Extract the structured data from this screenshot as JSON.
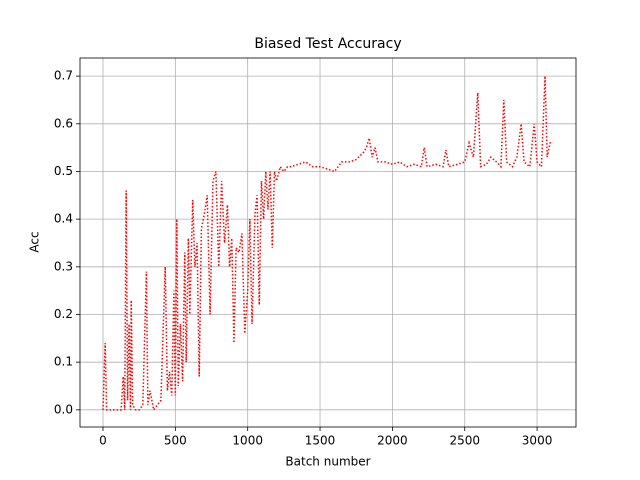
{
  "chart_data": {
    "type": "line",
    "title": "Biased Test Accuracy",
    "x_label": "Batch number",
    "y_label": "Acc",
    "x": [
      0,
      15,
      25,
      50,
      100,
      125,
      140,
      150,
      160,
      170,
      180,
      190,
      195,
      205,
      225,
      250,
      275,
      300,
      310,
      325,
      350,
      375,
      400,
      430,
      445,
      460,
      475,
      490,
      500,
      510,
      520,
      535,
      550,
      565,
      575,
      590,
      600,
      620,
      635,
      650,
      665,
      680,
      700,
      720,
      740,
      760,
      780,
      800,
      820,
      840,
      860,
      875,
      890,
      905,
      920,
      940,
      960,
      980,
      1000,
      1015,
      1030,
      1050,
      1065,
      1080,
      1095,
      1110,
      1125,
      1140,
      1155,
      1170,
      1185,
      1200,
      1225,
      1250,
      1275,
      1300,
      1350,
      1400,
      1450,
      1500,
      1550,
      1600,
      1650,
      1700,
      1750,
      1800,
      1820,
      1840,
      1860,
      1880,
      1900,
      1950,
      2000,
      2050,
      2100,
      2150,
      2200,
      2220,
      2240,
      2300,
      2350,
      2370,
      2390,
      2450,
      2500,
      2530,
      2560,
      2590,
      2610,
      2650,
      2680,
      2720,
      2750,
      2770,
      2790,
      2830,
      2860,
      2890,
      2910,
      2950,
      2980,
      3000,
      3030,
      3055,
      3070,
      3090,
      3110
    ],
    "series": [
      {
        "color": "#ff0000",
        "values": [
          0,
          0.14,
          0,
          0,
          0,
          0,
          0.07,
          0,
          0.46,
          0.02,
          0.18,
          0,
          0.23,
          0.01,
          0,
          0,
          0.01,
          0.29,
          0.01,
          0.04,
          0,
          0.01,
          0.02,
          0.3,
          0.04,
          0.08,
          0.03,
          0.25,
          0.03,
          0.4,
          0.05,
          0.18,
          0.06,
          0.33,
          0.1,
          0.36,
          0.2,
          0.44,
          0.3,
          0.35,
          0.07,
          0.38,
          0.41,
          0.45,
          0.2,
          0.48,
          0.5,
          0.3,
          0.48,
          0.35,
          0.43,
          0.3,
          0.36,
          0.14,
          0.34,
          0.33,
          0.37,
          0.16,
          0.25,
          0.4,
          0.18,
          0.41,
          0.45,
          0.22,
          0.48,
          0.4,
          0.5,
          0.42,
          0.5,
          0.34,
          0.5,
          0.48,
          0.51,
          0.5,
          0.51,
          0.51,
          0.515,
          0.52,
          0.51,
          0.51,
          0.505,
          0.5,
          0.52,
          0.52,
          0.525,
          0.54,
          0.55,
          0.57,
          0.53,
          0.55,
          0.52,
          0.52,
          0.515,
          0.52,
          0.51,
          0.515,
          0.51,
          0.55,
          0.51,
          0.515,
          0.51,
          0.545,
          0.51,
          0.515,
          0.52,
          0.56,
          0.53,
          0.665,
          0.51,
          0.515,
          0.53,
          0.52,
          0.51,
          0.65,
          0.52,
          0.51,
          0.53,
          0.6,
          0.52,
          0.51,
          0.6,
          0.52,
          0.51,
          0.7,
          0.53,
          0.56,
          0.56
        ]
      }
    ],
    "xlim": [
      -159,
      3269
    ],
    "ylim": [
      -0.036,
      0.738
    ],
    "xticks": [
      0,
      500,
      1000,
      1500,
      2000,
      2500,
      3000
    ],
    "yticks": [
      {
        "value": 0,
        "label": "0.0"
      },
      0.1,
      0.2,
      0.3,
      0.4,
      0.5,
      0.6,
      0.7
    ],
    "grid": true
  }
}
